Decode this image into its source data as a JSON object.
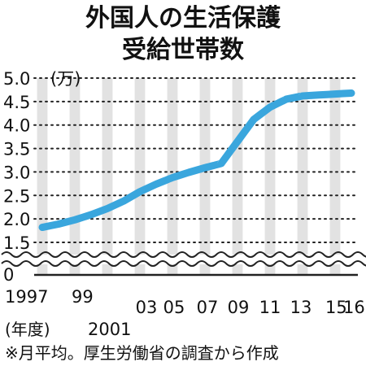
{
  "chart_data": {
    "type": "line",
    "title": "外国人の生活保護",
    "subtitle": "受給世帯数",
    "unit_label": "(万)",
    "xlabel_unit": "(年度)",
    "note": "※月平均。厚生労働省の調査から作成",
    "ylim": [
      0,
      5.0
    ],
    "y_broken_axis": true,
    "y_ticks": [
      "5.0",
      "4.5",
      "4.0",
      "3.5",
      "3.0",
      "2.5",
      "2.0",
      "1.5",
      "0"
    ],
    "x_tick_labels": [
      {
        "year": 1997,
        "label": "1997"
      },
      {
        "year": 1999,
        "label": "99"
      },
      {
        "year": 2001,
        "label": "2001"
      },
      {
        "year": 2003,
        "label": "03"
      },
      {
        "year": 2005,
        "label": "05"
      },
      {
        "year": 2007,
        "label": "07"
      },
      {
        "year": 2009,
        "label": "09"
      },
      {
        "year": 2011,
        "label": "11"
      },
      {
        "year": 2013,
        "label": "13"
      },
      {
        "year": 2015,
        "label": "15"
      },
      {
        "year": 2016,
        "label": "16"
      }
    ],
    "x": [
      1997,
      1998,
      1999,
      2000,
      2001,
      2002,
      2003,
      2004,
      2005,
      2006,
      2007,
      2008,
      2009,
      2010,
      2011,
      2012,
      2013,
      2014,
      2015,
      2016
    ],
    "series": [
      {
        "values": [
          1.82,
          1.89,
          1.98,
          2.09,
          2.22,
          2.38,
          2.58,
          2.74,
          2.88,
          2.99,
          3.09,
          3.18,
          3.65,
          4.12,
          4.38,
          4.55,
          4.62,
          4.64,
          4.66,
          4.68
        ]
      }
    ],
    "colors": {
      "line": "#3aa6dd",
      "band": "#e2e2e2",
      "grid": "#222222"
    },
    "grid": "dotted-horizontal"
  }
}
